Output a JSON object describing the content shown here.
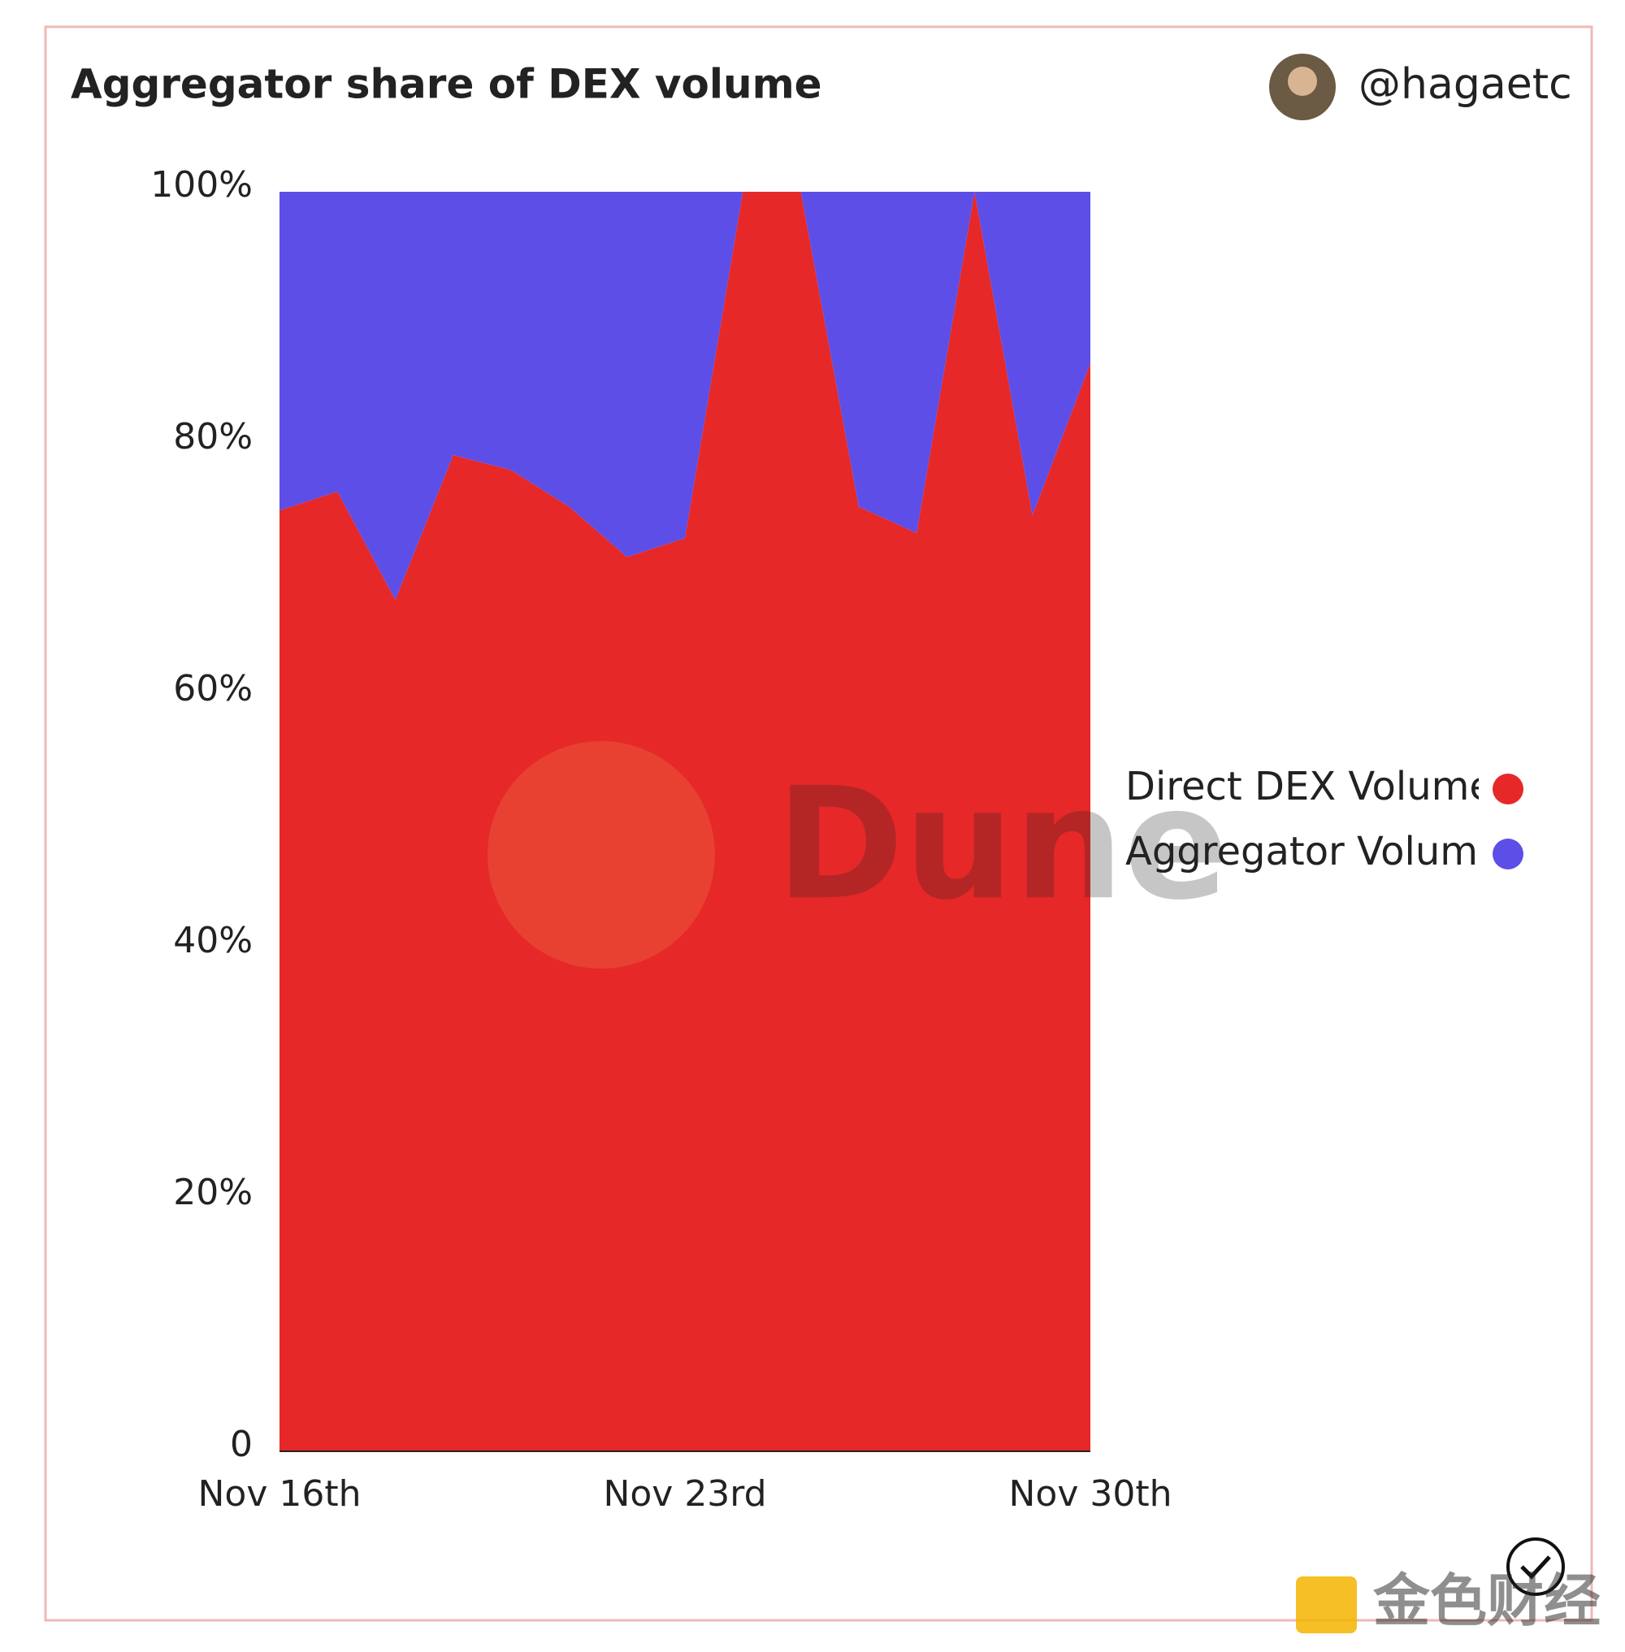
{
  "chart_data": {
    "type": "stacked_area",
    "title": "Aggregator share of DEX volume",
    "author": "@hagaetc",
    "categories": [
      "Nov 16th",
      null,
      null,
      null,
      null,
      null,
      null,
      "Nov 23rd",
      null,
      null,
      null,
      null,
      null,
      null,
      "Nov 30th"
    ],
    "series": [
      {
        "name": "Direct DEX Volume",
        "color": "#e62828",
        "values": [
          74.7,
          76.2,
          67.6,
          79.1,
          77.9,
          75.0,
          71.0,
          72.5,
          100,
          100,
          75.0,
          72.9,
          100,
          74.3,
          86.4
        ]
      },
      {
        "name": "Aggregator Volume",
        "color": "#5d4ee8",
        "values": [
          25.3,
          23.8,
          32.4,
          20.9,
          22.1,
          25.0,
          29.0,
          27.5,
          0,
          0,
          25.0,
          27.1,
          0,
          25.7,
          13.6
        ]
      }
    ],
    "ylim": [
      0,
      100
    ],
    "yticks": [
      0,
      {
        "value": 20,
        "label": "20%"
      },
      {
        "value": 40,
        "label": "40%"
      },
      {
        "value": 60,
        "label": "60%"
      },
      {
        "value": 80,
        "label": "80%"
      },
      {
        "value": 100,
        "label": "100%"
      }
    ],
    "legend": "right",
    "watermarks": [
      "Dune",
      "金色财经"
    ]
  }
}
